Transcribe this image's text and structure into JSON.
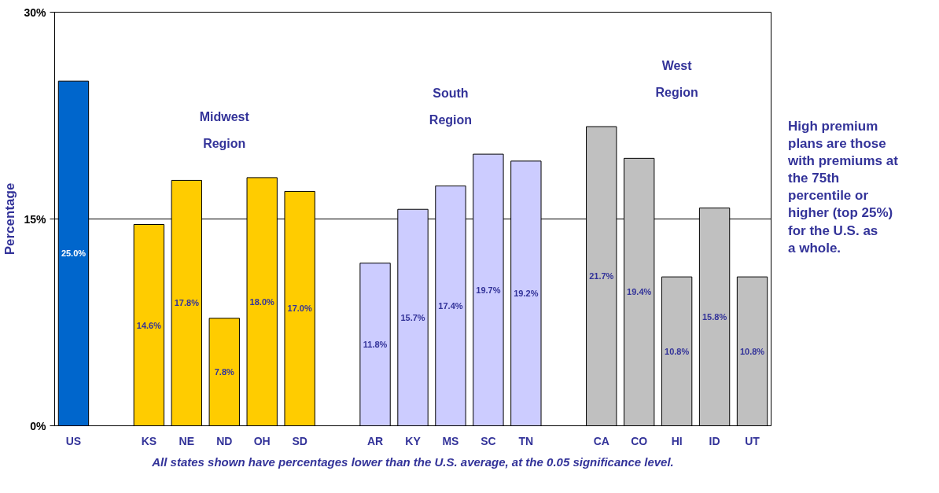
{
  "chart_data": {
    "type": "bar",
    "ylabel": "Percentage",
    "categories": [
      "US",
      null,
      "KS",
      "NE",
      "ND",
      "OH",
      "SD",
      null,
      "AR",
      "KY",
      "MS",
      "SC",
      "TN",
      null,
      "CA",
      "CO",
      "HI",
      "ID",
      "UT"
    ],
    "values": [
      25.0,
      null,
      14.6,
      17.8,
      7.8,
      18.0,
      17.0,
      null,
      11.8,
      15.7,
      17.4,
      19.7,
      19.2,
      null,
      21.7,
      19.4,
      10.8,
      15.8,
      10.8
    ],
    "value_labels": [
      "25.0%",
      null,
      "14.6%",
      "17.8%",
      "7.8%",
      "18.0%",
      "17.0%",
      null,
      "11.8%",
      "15.7%",
      "17.4%",
      "19.7%",
      "19.2%",
      null,
      "21.7%",
      "19.4%",
      "10.8%",
      "15.8%",
      "10.8%"
    ],
    "colors": [
      "#0066cc",
      null,
      "#ffcc00",
      "#ffcc00",
      "#ffcc00",
      "#ffcc00",
      "#ffcc00",
      null,
      "#ccccff",
      "#ccccff",
      "#ccccff",
      "#ccccff",
      "#ccccff",
      null,
      "#c0c0c0",
      "#c0c0c0",
      "#c0c0c0",
      "#c0c0c0",
      "#c0c0c0"
    ],
    "ylim": [
      0,
      30
    ],
    "yticks": [
      {
        "value": 0,
        "label": "0%"
      },
      {
        "value": 15,
        "label": "15%"
      },
      {
        "value": 30,
        "label": "30%"
      }
    ],
    "grid": "y",
    "annotations": [
      "Midwest Region",
      "South Region",
      "West Region",
      "High premium plans are those with premiums at the 75th percentile or higher (top 25%) for the U.S. as a whole.",
      "All states shown have percentages lower than the U.S. average, at the 0.05 significance level."
    ]
  }
}
